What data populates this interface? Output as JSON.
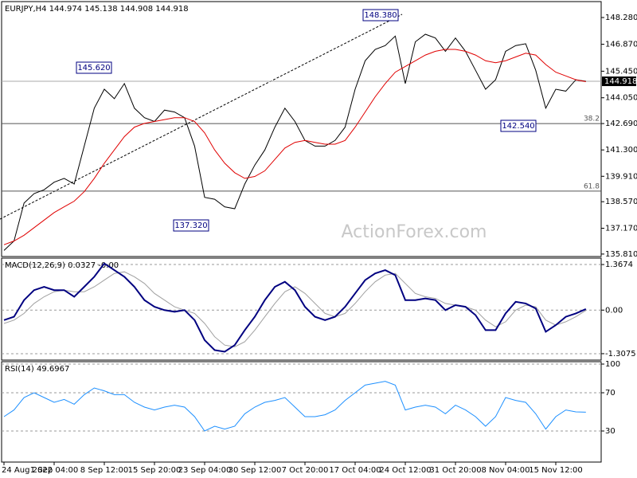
{
  "chart_data": [
    {
      "type": "line",
      "title": "EURJPY,H4  144.974 145.138 144.908 144.918",
      "watermark": "ActionForex.com",
      "ylim": [
        135.68,
        149.12
      ],
      "yticks": [
        {
          "value": 135.81,
          "label": "135.810"
        },
        {
          "value": 137.17,
          "label": "137.170"
        },
        {
          "value": 138.57,
          "label": "138.570"
        },
        {
          "value": 139.91,
          "label": "139.910"
        },
        {
          "value": 141.3,
          "label": "141.300"
        },
        {
          "value": 142.69,
          "label": "142.690"
        },
        {
          "value": 144.05,
          "label": "144.050"
        },
        {
          "value": 145.45,
          "label": "145.450"
        },
        {
          "value": 146.87,
          "label": "146.870"
        },
        {
          "value": 148.28,
          "label": "148.280"
        }
      ],
      "price_line": 144.918,
      "levels": [
        {
          "value": 142.69,
          "label": "38.2"
        },
        {
          "value": 139.13,
          "label": "61.8"
        }
      ],
      "annotations": [
        "148.380",
        "145.620",
        "137.320",
        "142.540"
      ],
      "series": [
        {
          "color": "#000000",
          "values": [
            136.0,
            136.5,
            138.5,
            139.0,
            139.2,
            139.6,
            139.8,
            139.5,
            141.5,
            143.5,
            144.5,
            144.0,
            144.8,
            143.5,
            143.0,
            142.8,
            143.4,
            143.3,
            143.0,
            141.5,
            138.8,
            138.7,
            138.3,
            138.2,
            139.5,
            140.5,
            141.3,
            142.5,
            143.5,
            142.8,
            141.8,
            141.5,
            141.5,
            141.8,
            142.5,
            144.5,
            146.0,
            146.6,
            146.8,
            147.3,
            144.8,
            147.0,
            147.4,
            147.2,
            146.5,
            147.2,
            146.5,
            145.5,
            144.5,
            145.0,
            146.5,
            146.8,
            146.9,
            145.5,
            143.5,
            144.5,
            144.4,
            145.0,
            144.918
          ]
        },
        {
          "color": "#e00000",
          "values": [
            136.3,
            136.5,
            136.8,
            137.2,
            137.6,
            138.0,
            138.3,
            138.6,
            139.1,
            139.8,
            140.6,
            141.3,
            142.0,
            142.5,
            142.7,
            142.8,
            142.9,
            143.0,
            143.0,
            142.8,
            142.2,
            141.3,
            140.6,
            140.1,
            139.8,
            139.9,
            140.2,
            140.8,
            141.4,
            141.7,
            141.8,
            141.7,
            141.6,
            141.6,
            141.8,
            142.5,
            143.3,
            144.1,
            144.8,
            145.4,
            145.7,
            146.0,
            146.3,
            146.5,
            146.6,
            146.6,
            146.5,
            146.3,
            146.0,
            145.9,
            146.0,
            146.2,
            146.4,
            146.3,
            145.8,
            145.4,
            145.2,
            145.0,
            144.9
          ]
        }
      ]
    },
    {
      "type": "line",
      "title": "MACD(12,26,9) 0.0327 -0.00",
      "ylim": [
        -1.5,
        1.56
      ],
      "yticks": [
        -1.3075,
        {
          "value": 0,
          "label": "0.00"
        },
        1.3674
      ],
      "series": [
        {
          "color": "#a0a0a0",
          "values": [
            -0.4,
            -0.3,
            -0.1,
            0.2,
            0.4,
            0.55,
            0.6,
            0.55,
            0.55,
            0.7,
            0.9,
            1.1,
            1.15,
            1.0,
            0.8,
            0.5,
            0.3,
            0.1,
            0.0,
            -0.1,
            -0.4,
            -0.8,
            -1.05,
            -1.1,
            -0.95,
            -0.6,
            -0.2,
            0.2,
            0.55,
            0.7,
            0.5,
            0.2,
            -0.1,
            -0.2,
            -0.1,
            0.2,
            0.55,
            0.85,
            1.05,
            1.1,
            0.8,
            0.5,
            0.4,
            0.35,
            0.2,
            0.15,
            0.1,
            0.0,
            -0.3,
            -0.5,
            -0.35,
            0.0,
            0.15,
            0.1,
            -0.3,
            -0.45,
            -0.35,
            -0.2,
            -0.01
          ]
        },
        {
          "color": "#000080",
          "values": [
            -0.3,
            -0.2,
            0.3,
            0.6,
            0.7,
            0.6,
            0.6,
            0.4,
            0.7,
            1.0,
            1.4,
            1.2,
            1.0,
            0.7,
            0.3,
            0.1,
            0.0,
            -0.05,
            0.0,
            -0.3,
            -0.9,
            -1.2,
            -1.25,
            -1.05,
            -0.6,
            -0.2,
            0.3,
            0.7,
            0.85,
            0.6,
            0.1,
            -0.2,
            -0.3,
            -0.2,
            0.1,
            0.5,
            0.9,
            1.1,
            1.2,
            1.05,
            0.3,
            0.3,
            0.35,
            0.3,
            0.0,
            0.15,
            0.1,
            -0.15,
            -0.6,
            -0.6,
            -0.1,
            0.25,
            0.2,
            0.05,
            -0.65,
            -0.45,
            -0.2,
            -0.1,
            0.0327
          ]
        }
      ]
    },
    {
      "type": "line",
      "title": "RSI(14) 49.6967",
      "ylim": [
        -2.5,
        102.5
      ],
      "yticks": [
        30,
        70,
        100
      ],
      "categories": [
        "24 Aug 2022",
        null,
        null,
        null,
        null,
        "1 Sep 04:00",
        null,
        null,
        null,
        null,
        "8 Sep 12:00",
        null,
        null,
        null,
        null,
        "15 Sep 20:00",
        null,
        null,
        null,
        null,
        "23 Sep 04:00",
        null,
        null,
        null,
        null,
        "30 Sep 12:00",
        null,
        null,
        null,
        null,
        "7 Oct 20:00",
        null,
        null,
        null,
        null,
        "17 Oct 04:00",
        null,
        null,
        null,
        null,
        "24 Oct 12:00",
        null,
        null,
        null,
        null,
        "31 Oct 20:00",
        null,
        null,
        null,
        null,
        "8 Nov 04:00",
        null,
        null,
        null,
        null,
        "15 Nov 12:00",
        null,
        null,
        null
      ],
      "series": [
        {
          "color": "#1e90ff",
          "values": [
            45,
            52,
            65,
            70,
            65,
            60,
            63,
            58,
            68,
            75,
            72,
            68,
            68,
            60,
            55,
            52,
            55,
            57,
            55,
            45,
            30,
            35,
            32,
            35,
            48,
            55,
            60,
            62,
            65,
            55,
            45,
            45,
            47,
            52,
            62,
            70,
            78,
            80,
            82,
            78,
            52,
            55,
            57,
            55,
            48,
            57,
            52,
            45,
            35,
            45,
            65,
            62,
            60,
            48,
            32,
            45,
            52,
            50,
            49.6967
          ]
        }
      ]
    }
  ]
}
